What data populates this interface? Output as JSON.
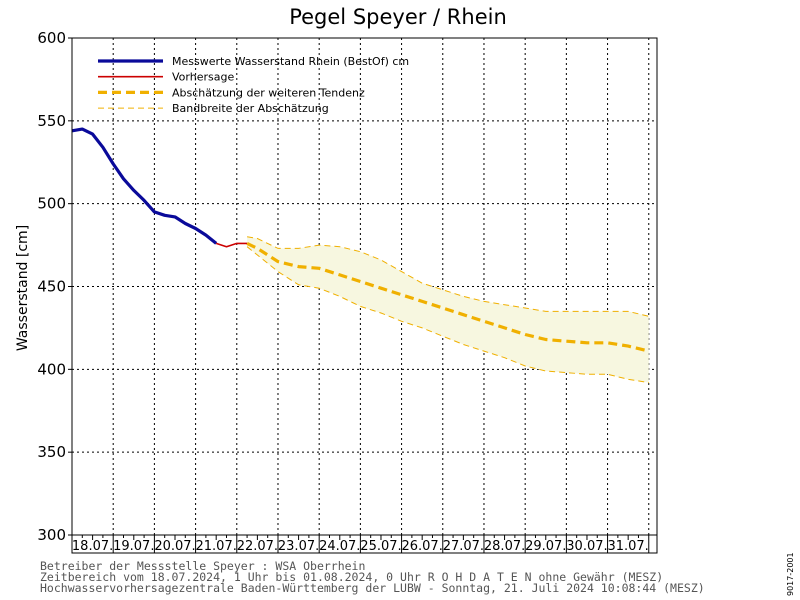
{
  "chart_data": {
    "type": "line",
    "title": "Pegel Speyer / Rhein",
    "ylabel": "Wasserstand [cm]",
    "xlabel": "",
    "ylim": [
      300,
      600
    ],
    "yticks": [
      300,
      350,
      400,
      450,
      500,
      550,
      600
    ],
    "xlim": [
      0,
      14.2
    ],
    "xtick_labels": [
      "18.07.",
      "19.07.",
      "20.07.",
      "21.07.",
      "22.07.",
      "23.07.",
      "24.07.",
      "25.07.",
      "26.07.",
      "27.07.",
      "28.07.",
      "29.07.",
      "30.07.",
      "31.07."
    ],
    "grid": true,
    "legend_position": "top-left",
    "series": [
      {
        "name": "Messwerte Wasserstand Rhein (BestOf) cm",
        "color": "#0a0a9a",
        "style": "solid-thick",
        "x": [
          0,
          0.25,
          0.5,
          0.75,
          1.0,
          1.25,
          1.5,
          1.75,
          2.0,
          2.25,
          2.5,
          2.75,
          3.0,
          3.25,
          3.5
        ],
        "y": [
          544,
          545,
          542,
          534,
          524,
          515,
          508,
          502,
          495,
          493,
          492,
          488,
          485,
          481,
          476
        ]
      },
      {
        "name": "Vorhersage",
        "color": "#cc0000",
        "style": "solid",
        "x": [
          3.5,
          3.75,
          4.0,
          4.25
        ],
        "y": [
          476,
          474,
          476,
          476
        ]
      },
      {
        "name": "Abschätzung der weiteren Tendenz",
        "color": "#f0b000",
        "style": "dashed-thick",
        "x": [
          4.25,
          4.5,
          5.0,
          5.5,
          6.0,
          6.5,
          7.0,
          7.5,
          8.0,
          8.5,
          9.0,
          9.5,
          10.0,
          10.5,
          11.0,
          11.5,
          12.0,
          12.5,
          13.0,
          13.5,
          14.0
        ],
        "y": [
          476,
          473,
          465,
          462,
          461,
          457,
          453,
          449,
          445,
          441,
          437,
          433,
          429,
          425,
          421,
          418,
          417,
          416,
          416,
          414,
          411
        ]
      }
    ],
    "band": {
      "name": "Bandbreite der Abschätzung",
      "color": "#f0b000",
      "fill": "#f7f7e0",
      "x": [
        4.25,
        4.5,
        5.0,
        5.5,
        6.0,
        6.5,
        7.0,
        7.5,
        8.0,
        8.5,
        9.0,
        9.5,
        10.0,
        10.5,
        11.0,
        11.5,
        12.0,
        12.5,
        13.0,
        13.5,
        14.0
      ],
      "upper": [
        480,
        479,
        473,
        473,
        475,
        474,
        471,
        466,
        459,
        452,
        448,
        444,
        441,
        439,
        437,
        435,
        435,
        435,
        435,
        435,
        432
      ],
      "lower": [
        474,
        469,
        459,
        451,
        449,
        444,
        438,
        434,
        429,
        425,
        420,
        415,
        411,
        407,
        402,
        399,
        398,
        397,
        397,
        394,
        392
      ]
    }
  },
  "footer": {
    "line1": "Betreiber der Messstelle Speyer : WSA Oberrhein",
    "line2": "Zeitbereich vom 18.07.2024, 1 Uhr bis 01.08.2024, 0 Uhr   R O H D A T E N ohne Gewähr (MESZ)",
    "line3": "Hochwasservorhersagezentrale Baden-Württemberg der LUBW - Sonntag, 21. Juli 2024 10:08:44 (MESZ)"
  },
  "side_id": "9017-2001"
}
